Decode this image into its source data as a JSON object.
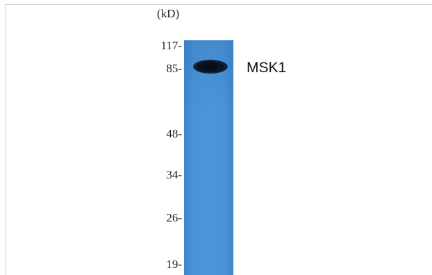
{
  "blot": {
    "unit_label": "(kD)",
    "markers": [
      "117-",
      "85-",
      "48-",
      "34-",
      "26-",
      "19-"
    ],
    "band_label": "MSK1",
    "lane_color": "#4a92d8",
    "band_color": "#0b1526"
  }
}
